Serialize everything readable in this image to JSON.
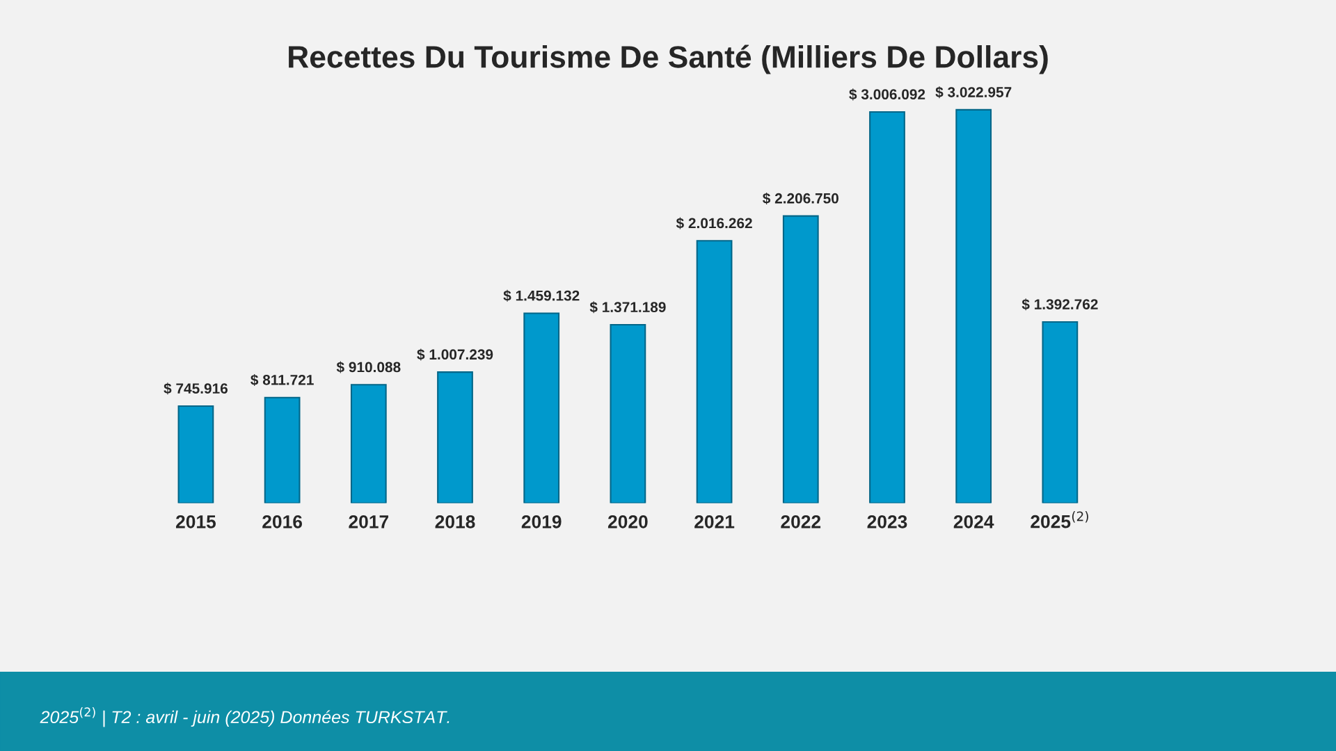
{
  "chart_data": {
    "type": "bar",
    "title": "Recettes Du Tourisme De Santé (Milliers De Dollars)",
    "categories": [
      "2015",
      "2016",
      "2017",
      "2018",
      "2019",
      "2020",
      "2021",
      "2022",
      "2023",
      "2024",
      "2025$^{(2)}$"
    ],
    "values": [
      745916,
      811721,
      910088,
      1007239,
      1459132,
      1371189,
      2016262,
      2206750,
      3006092,
      3022957,
      1392762
    ],
    "value_labels": [
      "$ 745.916",
      "$ 811.721",
      "$ 910.088",
      "$ 1.007.239",
      "$ 1.459.132",
      "$ 1.371.189",
      "$ 2.016.262",
      "$ 2.206.750",
      "$ 3.006.092",
      "$ 3.022.957",
      "$ 1.392.762"
    ],
    "color": "#0099cc",
    "annotations": [
      "2025$^{(2)}$ | T2 : avril - juin (2025) Données TURKSTAT."
    ],
    "grid": false,
    "legend": false
  }
}
